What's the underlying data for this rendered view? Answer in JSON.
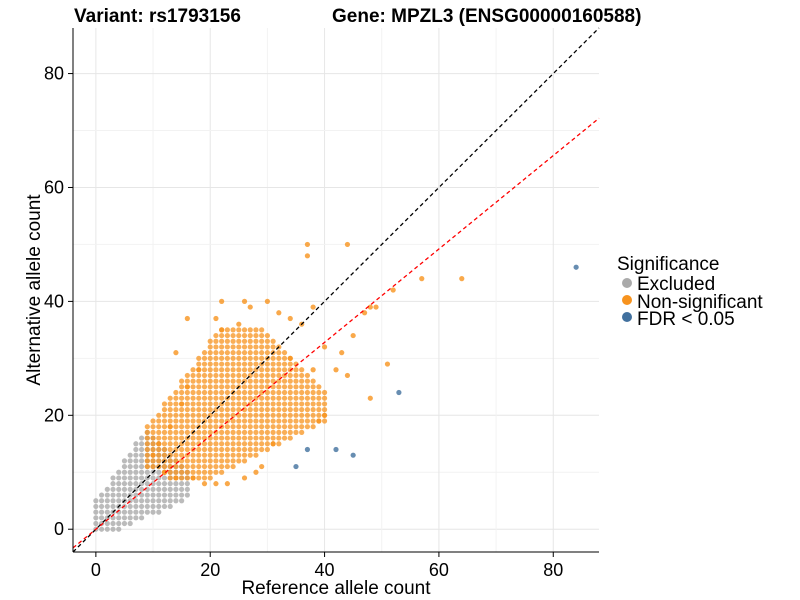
{
  "chart_data": {
    "type": "scatter",
    "title_left": "Variant: rs1793156",
    "title_right": "Gene: MPZL3 (ENSG00000160588)",
    "xlabel": "Reference allele count",
    "ylabel": "Alternative allele count",
    "xlim": [
      -4,
      88
    ],
    "ylim": [
      -4,
      88
    ],
    "x_ticks": [
      0,
      20,
      40,
      60,
      80
    ],
    "y_ticks": [
      0,
      20,
      40,
      60,
      80
    ],
    "grid": true,
    "legend": {
      "title": "Significance",
      "position": "right",
      "entries": [
        {
          "label": "Excluded",
          "color": "#aaaaaa"
        },
        {
          "label": "Non-significant",
          "color": "#f7931e"
        },
        {
          "label": "FDR < 0.05",
          "color": "#41709e"
        }
      ]
    },
    "reference_lines": [
      {
        "type": "identity",
        "slope": 1,
        "intercept": 0,
        "color": "#000000",
        "dash": "dashed"
      },
      {
        "type": "fitted",
        "slope": 0.82,
        "intercept": 0,
        "color": "#ff0000",
        "dash": "dashed"
      }
    ],
    "series": [
      {
        "name": "FDR < 0.05",
        "color": "#41709e",
        "points": [
          [
            84,
            46
          ],
          [
            53,
            24
          ],
          [
            35,
            11
          ],
          [
            37,
            14
          ],
          [
            42,
            14
          ],
          [
            45,
            13
          ]
        ]
      },
      {
        "name": "Non-significant",
        "color": "#f7931e",
        "points": [
          [
            37,
            50
          ],
          [
            37,
            48
          ],
          [
            44,
            50
          ],
          [
            64,
            44
          ],
          [
            57,
            44
          ],
          [
            52,
            42
          ],
          [
            47,
            38
          ],
          [
            49,
            39
          ],
          [
            48,
            39
          ],
          [
            45,
            34
          ],
          [
            43,
            31
          ],
          [
            51,
            29
          ],
          [
            48,
            23
          ],
          [
            40,
            20
          ],
          [
            39,
            19
          ],
          [
            31,
            15
          ],
          [
            29,
            11
          ],
          [
            28,
            10
          ],
          [
            26,
            9
          ],
          [
            23,
            8
          ],
          [
            21,
            8
          ],
          [
            19,
            8
          ],
          [
            17,
            9
          ],
          [
            14,
            9
          ],
          [
            12,
            10
          ],
          [
            10,
            11
          ],
          [
            9,
            11
          ],
          [
            9,
            12
          ],
          [
            10,
            13
          ],
          [
            11,
            15
          ],
          [
            13,
            18
          ],
          [
            15,
            22
          ],
          [
            16,
            25
          ],
          [
            18,
            28
          ],
          [
            14,
            31
          ],
          [
            16,
            37
          ],
          [
            21,
            37
          ],
          [
            22,
            35
          ],
          [
            22,
            40
          ],
          [
            26,
            40
          ],
          [
            27,
            39
          ],
          [
            30,
            40
          ],
          [
            32,
            38
          ],
          [
            34,
            37
          ],
          [
            38,
            39
          ],
          [
            36,
            36
          ],
          [
            40,
            32
          ],
          [
            42,
            28
          ],
          [
            44,
            27
          ],
          [
            34,
            30
          ],
          [
            38,
            28
          ],
          [
            25,
            36
          ]
        ]
      }
    ],
    "excluded_region": {
      "name": "Excluded",
      "color": "#aaaaaa",
      "x_range": [
        0,
        16
      ],
      "y_range": [
        0,
        23
      ]
    },
    "nonsig_region": {
      "x_range": [
        9,
        40
      ],
      "y_range": [
        9,
        35
      ]
    }
  }
}
